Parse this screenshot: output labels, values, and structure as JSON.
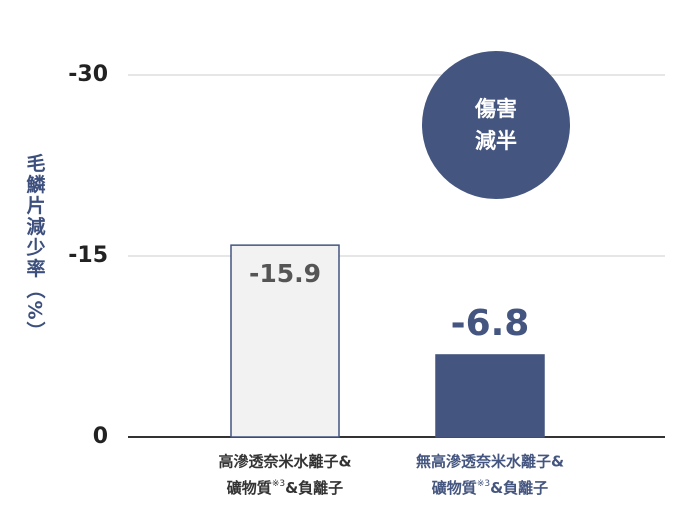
{
  "chart_data": {
    "type": "bar",
    "y_label": "毛鱗片減少率（%）",
    "categories": [
      [
        "高滲透奈米水離子&",
        [
          "礦物質",
          "※3",
          "&負離子"
        ]
      ],
      [
        "無高滲透奈米水離子&",
        [
          "礦物質",
          "※3",
          "&負離子"
        ]
      ]
    ],
    "category_colors": [
      "#333333",
      "#44557f"
    ],
    "values": [
      -15.9,
      -6.8
    ],
    "colors": [
      "#f2f2f2",
      "#44557f"
    ],
    "value_label_colors": [
      "#555555",
      "#44557f"
    ],
    "ylim": [
      0,
      -30
    ],
    "yticks": [
      0,
      -15,
      -30
    ],
    "grid": true,
    "annotation": [
      "傷害",
      "減半"
    ],
    "annotation_color": "#44557f"
  }
}
